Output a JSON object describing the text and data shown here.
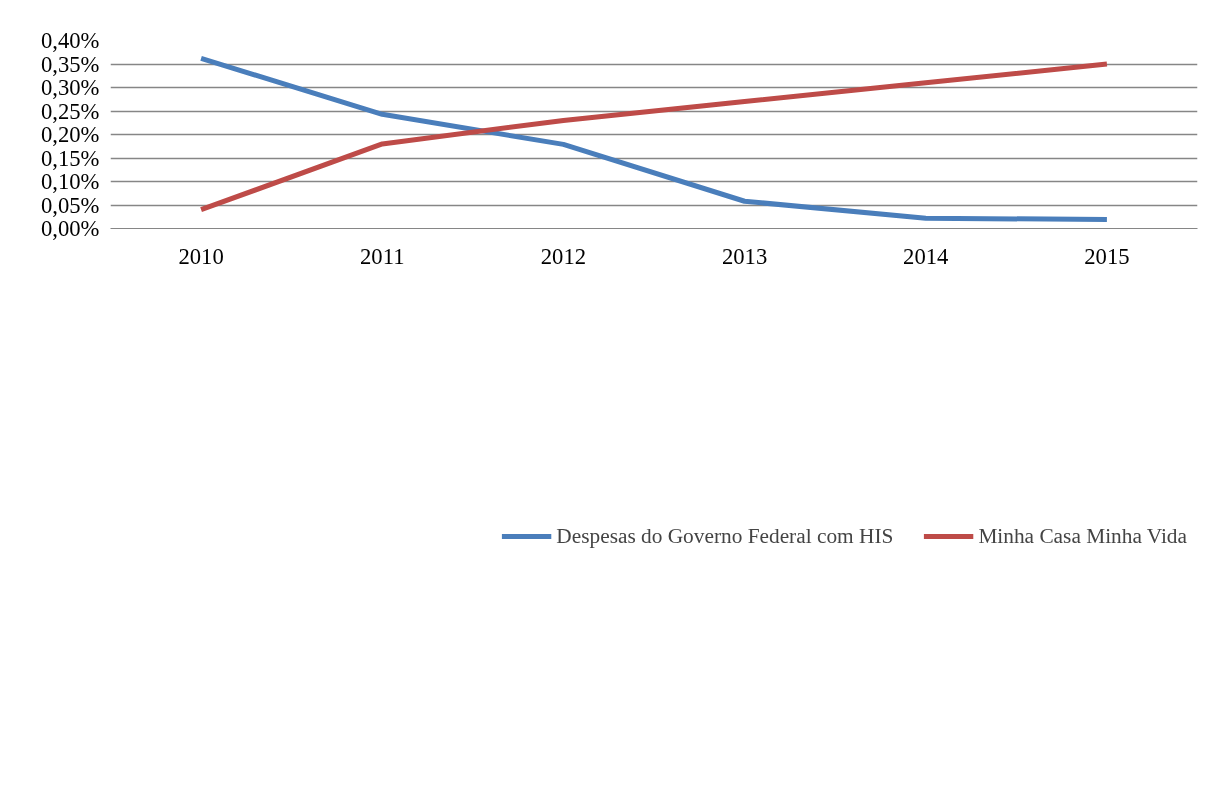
{
  "chart_data": {
    "type": "line",
    "categories": [
      "2010",
      "2011",
      "2012",
      "2013",
      "2014",
      "2015"
    ],
    "series": [
      {
        "name": "Despesas do Governo Federal com HIS",
        "color": "#4a7ebb",
        "values": [
          0.362,
          0.243,
          0.179,
          0.058,
          0.022,
          0.019
        ]
      },
      {
        "name": "Minha Casa Minha Vida",
        "color": "#be4b48",
        "values": [
          0.04,
          0.18,
          0.23,
          0.27,
          0.31,
          0.35
        ]
      }
    ],
    "ylim": [
      0,
      0.4
    ],
    "yticks": [
      {
        "value": 0,
        "label": "0,00%"
      },
      {
        "value": 0.05,
        "label": "0,05%"
      },
      {
        "value": 0.1,
        "label": "0,10%"
      },
      {
        "value": 0.15,
        "label": "0,15%"
      },
      {
        "value": 0.2,
        "label": "0,20%"
      },
      {
        "value": 0.25,
        "label": "0,25%"
      },
      {
        "value": 0.3,
        "label": "0,30%"
      },
      {
        "value": 0.35,
        "label": "0,35%"
      },
      {
        "value": 0.4,
        "label": "0,40%"
      }
    ],
    "grid": "y",
    "legend": "bottom",
    "marker": "none",
    "line_style": "solid"
  }
}
